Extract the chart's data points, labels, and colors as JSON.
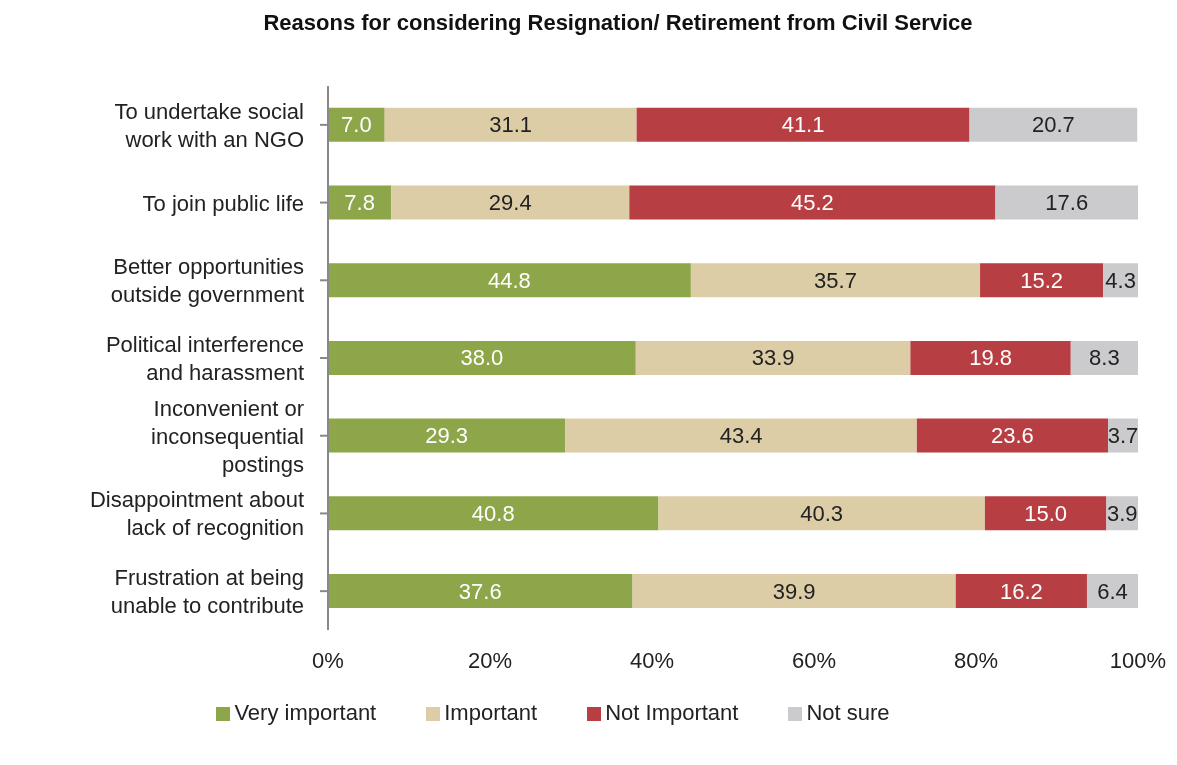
{
  "chart_data": {
    "type": "bar",
    "orientation": "horizontal",
    "stacked": true,
    "title": "Reasons for considering Resignation/ Retirement from Civil Service",
    "categories": [
      "To undertake social work with an NGO",
      "To join public life",
      "Better opportunities outside government",
      "Political interference and harassment",
      "Inconvenient or inconsequential postings",
      "Disappointment about lack of recognition",
      "Frustration at being unable to contribute"
    ],
    "series": [
      {
        "name": "Very important",
        "color": "#8ea64a",
        "values": [
          7.0,
          7.8,
          44.8,
          38.0,
          29.3,
          40.8,
          37.6
        ],
        "value_labels": [
          "7.0",
          "7.8",
          "44.8",
          "38.0",
          "29.3",
          "40.8",
          "37.6"
        ]
      },
      {
        "name": "Important",
        "color": "#dccda7",
        "values": [
          31.1,
          29.4,
          35.7,
          33.9,
          43.4,
          40.3,
          39.9
        ],
        "value_labels": [
          "31.1",
          "29.4",
          "35.7",
          "33.9",
          "43.4",
          "40.3",
          "39.9"
        ]
      },
      {
        "name": "Not Important",
        "color": "#b73f43",
        "values": [
          41.1,
          45.2,
          15.2,
          19.8,
          23.6,
          15.0,
          16.2
        ],
        "value_labels": [
          "41.1",
          "45.2",
          "15.2",
          "19.8",
          "23.6",
          "15.0",
          "16.2"
        ]
      },
      {
        "name": "Not sure",
        "color": "#cbcbcd",
        "values": [
          20.7,
          17.6,
          4.3,
          8.3,
          3.7,
          3.9,
          6.4
        ],
        "value_labels": [
          "20.7",
          "17.6",
          "4.3",
          "8.3",
          "3.7",
          "3.9",
          "6.4"
        ]
      }
    ],
    "xlim": [
      0,
      100
    ],
    "xticks": [
      {
        "value": 0,
        "label": "0%"
      },
      {
        "value": 20,
        "label": "20%"
      },
      {
        "value": 40,
        "label": "40%"
      },
      {
        "value": 60,
        "label": "60%"
      },
      {
        "value": 80,
        "label": "80%"
      },
      {
        "value": 100,
        "label": "100%"
      }
    ],
    "grid": false,
    "legend": "bottom"
  }
}
